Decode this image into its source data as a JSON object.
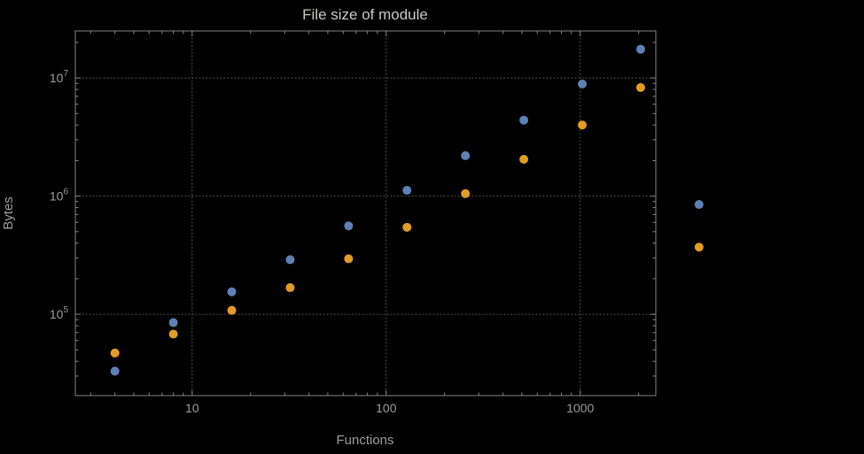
{
  "chart_data": {
    "type": "scatter",
    "title": "File size of module",
    "xlabel": "Functions",
    "ylabel": "Bytes",
    "x_scale": "log",
    "y_scale": "log",
    "xlim": [
      2.5,
      2450
    ],
    "ylim": [
      20500,
      25000000
    ],
    "x_ticks": [
      10,
      100,
      1000
    ],
    "y_ticks": [
      100000,
      1000000,
      10000000
    ],
    "grid": "dotted",
    "legend": "none",
    "colors": {
      "background": "#000000",
      "frame": "#848484",
      "grid": "#5c5c5c",
      "text": "#9d9d9b",
      "title": "#c8c8c6"
    },
    "series": [
      {
        "name": "series-1",
        "color": "#5e81b5",
        "points": [
          [
            4,
            33000
          ],
          [
            8,
            85000
          ],
          [
            16,
            155000
          ],
          [
            32,
            290000
          ],
          [
            64,
            560000
          ],
          [
            128,
            1120000
          ],
          [
            256,
            2200000
          ],
          [
            512,
            4400000
          ],
          [
            1024,
            8900000
          ],
          [
            2048,
            17500000
          ],
          [
            4096,
            850000
          ]
        ]
      },
      {
        "name": "series-2",
        "color": "#e19c24",
        "points": [
          [
            4,
            47000
          ],
          [
            8,
            68000
          ],
          [
            16,
            108000
          ],
          [
            32,
            168000
          ],
          [
            64,
            295000
          ],
          [
            128,
            545000
          ],
          [
            256,
            1050000
          ],
          [
            512,
            2050000
          ],
          [
            1024,
            4000000
          ],
          [
            2048,
            8300000
          ],
          [
            4096,
            370000
          ]
        ]
      }
    ]
  }
}
